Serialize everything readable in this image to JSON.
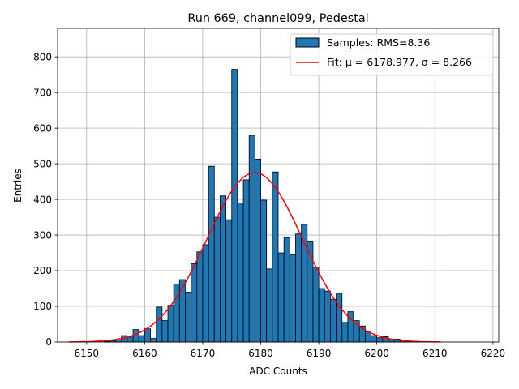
{
  "chart_data": {
    "type": "bar",
    "title": "Run 669, channel099, Pedestal",
    "xlabel": "ADC Counts",
    "ylabel": "Entries",
    "xlim": [
      6145,
      6221
    ],
    "ylim": [
      0,
      880
    ],
    "x_ticks": [
      6150,
      6160,
      6170,
      6180,
      6190,
      6200,
      6210,
      6220
    ],
    "y_ticks": [
      0,
      100,
      200,
      300,
      400,
      500,
      600,
      700,
      800
    ],
    "grid": true,
    "legend_position": "top-right",
    "colors": {
      "bars": "#1f77b4",
      "bar_edge": "#000000",
      "fit": "#ff0000",
      "grid": "#b0b0b0"
    },
    "histogram": {
      "name": "Samples: RMS=8.36",
      "bin_width": 1,
      "bin_starts": [
        6150,
        6151,
        6152,
        6153,
        6154,
        6155,
        6156,
        6157,
        6158,
        6159,
        6160,
        6161,
        6162,
        6163,
        6164,
        6165,
        6166,
        6167,
        6168,
        6169,
        6170,
        6171,
        6172,
        6173,
        6174,
        6175,
        6176,
        6177,
        6178,
        6179,
        6180,
        6181,
        6182,
        6183,
        6184,
        6185,
        6186,
        6187,
        6188,
        6189,
        6190,
        6191,
        6192,
        6193,
        6194,
        6195,
        6196,
        6197,
        6198,
        6199,
        6200,
        6201,
        6202,
        6203,
        6204,
        6205,
        6206,
        6207,
        6208
      ],
      "values": [
        0,
        0,
        0,
        2,
        4,
        6,
        18,
        14,
        35,
        18,
        37,
        10,
        98,
        60,
        103,
        163,
        175,
        140,
        220,
        253,
        273,
        493,
        350,
        410,
        343,
        765,
        390,
        455,
        580,
        513,
        398,
        205,
        477,
        250,
        293,
        245,
        303,
        330,
        283,
        210,
        150,
        143,
        120,
        135,
        55,
        85,
        60,
        45,
        28,
        18,
        12,
        15,
        8,
        8,
        5,
        3,
        2,
        1,
        1
      ]
    },
    "fit": {
      "name": "Fit: μ = 6178.977, σ = 8.266",
      "mu": 6178.977,
      "sigma": 8.266,
      "amplitude": 475,
      "x_range": [
        6147,
        6211
      ]
    }
  }
}
